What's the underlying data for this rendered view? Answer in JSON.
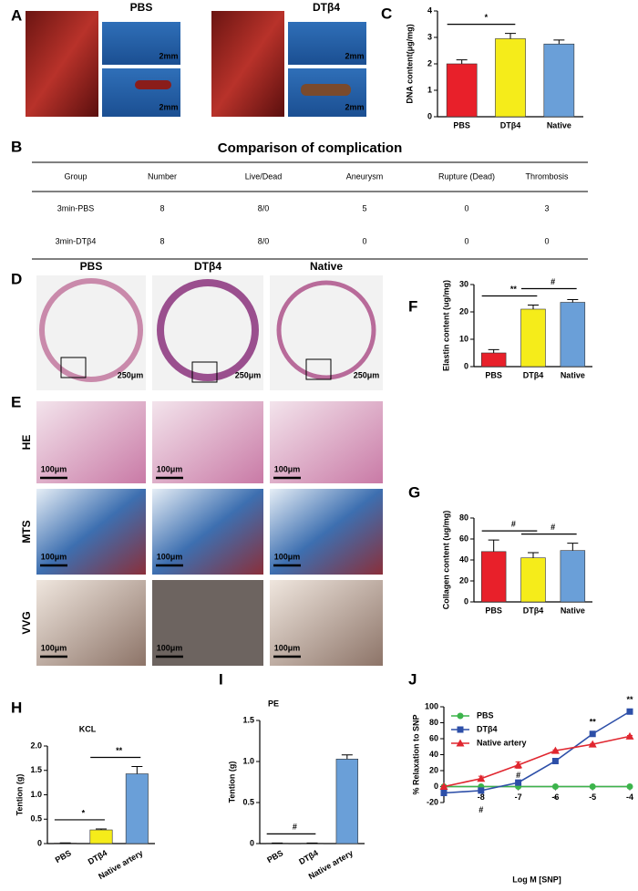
{
  "panel_labels": [
    "A",
    "B",
    "C",
    "D",
    "E",
    "F",
    "G",
    "H",
    "I",
    "J"
  ],
  "photos": {
    "A_groups": [
      "PBS",
      "DTβ4"
    ],
    "A_scale": "2mm",
    "D_groups": [
      "PBS",
      "DTβ4",
      "Native"
    ],
    "D_scale": "250μm",
    "E_stains": [
      "HE",
      "MTS",
      "VVG"
    ],
    "E_scale": "100μm"
  },
  "table": {
    "title": "Comparison of complication",
    "header": [
      "Group",
      "Number",
      "Live/Dead",
      "Aneurysm",
      "Rupture (Dead)",
      "Thrombosis"
    ],
    "rows": [
      [
        "3min-PBS",
        "8",
        "8/0",
        "5",
        "0",
        "3"
      ],
      [
        "3min-DTβ4",
        "8",
        "8/0",
        "0",
        "0",
        "0"
      ]
    ]
  },
  "chart_data": [
    {
      "type": "bar",
      "ylabel": "DNA content(μg/mg)",
      "categories": [
        "PBS",
        "DTβ4",
        "Native"
      ],
      "values": [
        2.0,
        2.95,
        2.75
      ],
      "errors": [
        0.15,
        0.2,
        0.15
      ],
      "colors": [
        "#e8202a",
        "#f5ec1a",
        "#6a9fd8"
      ],
      "ylim": [
        0,
        4
      ],
      "yticks": [
        0,
        1,
        2,
        3,
        4
      ],
      "annotations": [
        {
          "text": "*",
          "between": [
            "PBS",
            "DTβ4"
          ]
        }
      ]
    },
    {
      "type": "bar",
      "ylabel": "Elastin content (ug/mg)",
      "categories": [
        "PBS",
        "DTβ4",
        "Native"
      ],
      "values": [
        5,
        21,
        23.5
      ],
      "errors": [
        1.2,
        1.5,
        1.0
      ],
      "colors": [
        "#e8202a",
        "#f5ec1a",
        "#6a9fd8"
      ],
      "ylim": [
        0,
        30
      ],
      "yticks": [
        0,
        10,
        20,
        30
      ],
      "annotations": [
        {
          "text": "**",
          "between": [
            "PBS",
            "DTβ4"
          ]
        },
        {
          "text": "#",
          "between": [
            "DTβ4",
            "Native"
          ]
        }
      ]
    },
    {
      "type": "bar",
      "ylabel": "Collagen content (ug/mg)",
      "categories": [
        "PBS",
        "DTβ4",
        "Native"
      ],
      "values": [
        48,
        42,
        49
      ],
      "errors": [
        11,
        5,
        7
      ],
      "colors": [
        "#e8202a",
        "#f5ec1a",
        "#6a9fd8"
      ],
      "ylim": [
        0,
        80
      ],
      "yticks": [
        0,
        20,
        40,
        60,
        80
      ],
      "annotations": [
        {
          "text": "#",
          "between": [
            "PBS",
            "DTβ4"
          ]
        },
        {
          "text": "#",
          "between": [
            "DTβ4",
            "Native"
          ]
        }
      ]
    },
    {
      "type": "bar",
      "title": "KCL",
      "ylabel": "Tention (g)",
      "categories": [
        "PBS",
        "DTβ4",
        "Native artery"
      ],
      "values": [
        0.01,
        0.28,
        1.43
      ],
      "errors": [
        0.005,
        0.02,
        0.15
      ],
      "colors": [
        "#e8202a",
        "#f5ec1a",
        "#6a9fd8"
      ],
      "ylim": [
        0,
        2
      ],
      "yticks": [
        0,
        0.5,
        {
          "value": 1,
          "label": "1.0"
        },
        1.5,
        {
          "value": 2,
          "label": "2.0"
        }
      ],
      "annotations": [
        {
          "text": "*",
          "between": [
            "PBS",
            "DTβ4"
          ]
        },
        {
          "text": "**",
          "between": [
            "DTβ4",
            "Native artery"
          ]
        }
      ]
    },
    {
      "type": "bar",
      "title": "PE",
      "ylabel": "Tention (g)",
      "categories": [
        "PBS",
        "DTβ4",
        "Native artery"
      ],
      "values": [
        0.005,
        0.005,
        1.03
      ],
      "errors": [
        0.002,
        0.002,
        0.05
      ],
      "colors": [
        "#e8202a",
        "#f5ec1a",
        "#6a9fd8"
      ],
      "ylim": [
        0,
        1.5
      ],
      "yticks": [
        0,
        0.5,
        {
          "value": 1,
          "label": "1.0"
        },
        1.5
      ],
      "annotations": [
        {
          "text": "#",
          "between": [
            "PBS",
            "DTβ4"
          ]
        }
      ]
    },
    {
      "type": "line",
      "xlabel": "Log M [SNP]",
      "ylabel": "% Relaxation to SNP",
      "x": [
        -9,
        -8,
        -7,
        -6,
        -5,
        -4
      ],
      "xlim": [
        -9,
        -4
      ],
      "xticks": [
        -8,
        -7,
        -6,
        -5,
        -4
      ],
      "ylim": [
        -20,
        100
      ],
      "yticks": [
        -20,
        0,
        20,
        40,
        60,
        80,
        100
      ],
      "legend": "upper left",
      "series": [
        {
          "name": "PBS",
          "color": "#3cb44b",
          "marker": "circle",
          "values": [
            0,
            0,
            0,
            0,
            0,
            0
          ],
          "errors": [
            0,
            0,
            0,
            0,
            0,
            0
          ]
        },
        {
          "name": "DTβ4",
          "color": "#2d4fa8",
          "marker": "square",
          "values": [
            -8,
            -5,
            5,
            32,
            66,
            94
          ],
          "errors": [
            1,
            1,
            3,
            3,
            3,
            3
          ]
        },
        {
          "name": "Native artery",
          "color": "#e0262f",
          "marker": "triangle",
          "values": [
            0,
            10,
            27,
            45,
            53,
            63
          ],
          "errors": [
            1,
            3,
            4,
            1,
            1,
            1
          ]
        }
      ],
      "annotations": [
        {
          "text": "#",
          "x": -8
        },
        {
          "text": "#",
          "x": -7
        },
        {
          "text": "*",
          "x": -6
        },
        {
          "text": "**",
          "x": -5
        },
        {
          "text": "**",
          "x": -4
        }
      ]
    }
  ]
}
